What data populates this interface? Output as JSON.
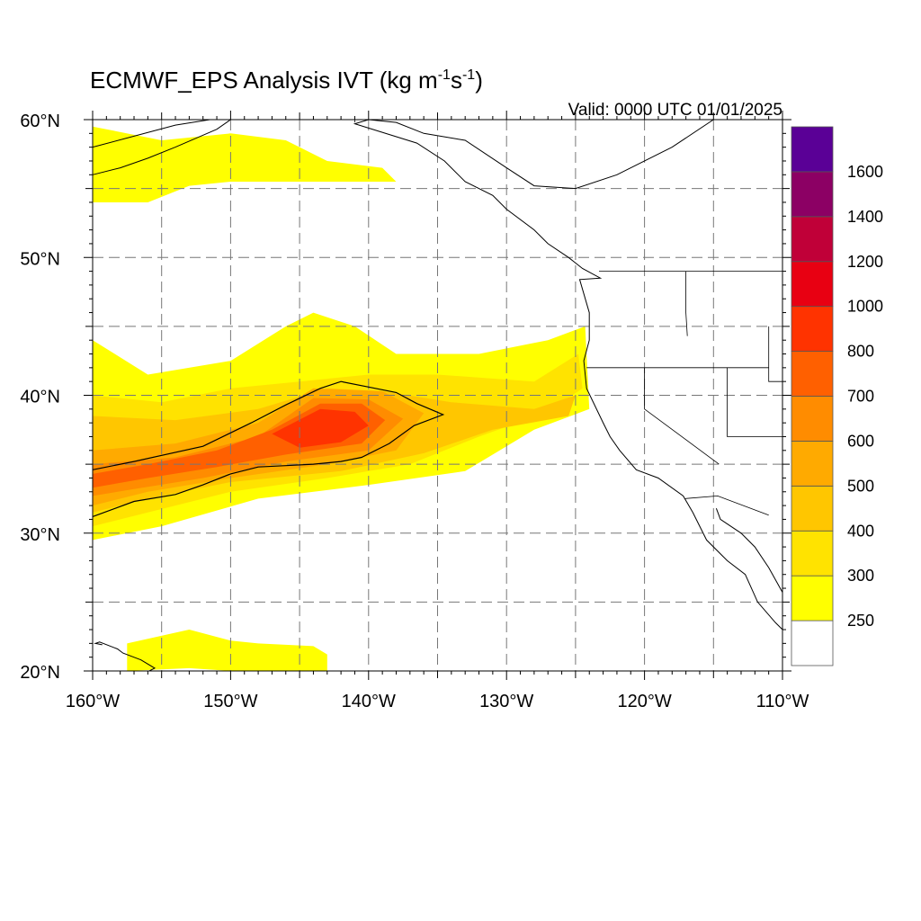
{
  "title": {
    "main": "ECMWF_EPS Analysis IVT (kg m",
    "sup1": "-1",
    "mid": "s",
    "sup2": "-1",
    "end": ")"
  },
  "valid_label": "Valid: 0000 UTC 01/01/2025",
  "map": {
    "lon_range": [
      -160,
      -110
    ],
    "lat_range": [
      20,
      60
    ],
    "lon_ticks": [
      {
        "value": -160,
        "label": "160°W"
      },
      {
        "value": -150,
        "label": "150°W"
      },
      {
        "value": -140,
        "label": "140°W"
      },
      {
        "value": -130,
        "label": "130°W"
      },
      {
        "value": -120,
        "label": "120°W"
      },
      {
        "value": -110,
        "label": "110°W"
      }
    ],
    "lat_ticks": [
      {
        "value": 60,
        "label": "60°N"
      },
      {
        "value": 50,
        "label": "50°N"
      },
      {
        "value": 40,
        "label": "40°N"
      },
      {
        "value": 30,
        "label": "30°N"
      },
      {
        "value": 20,
        "label": "20°N"
      }
    ],
    "gridlines_lon": [
      -155,
      -150,
      -145,
      -140,
      -135,
      -130,
      -125,
      -120,
      -115
    ],
    "gridlines_lat": [
      25,
      30,
      35,
      40,
      45,
      50,
      55
    ],
    "grid": true,
    "contour_level": 700,
    "ivt_regions": [
      {
        "level": 250,
        "points": [
          [
            -160,
            44
          ],
          [
            -156,
            41.5
          ],
          [
            -150,
            42.5
          ],
          [
            -146,
            45
          ],
          [
            -144,
            46
          ],
          [
            -141,
            45
          ],
          [
            -138,
            43
          ],
          [
            -132,
            43
          ],
          [
            -127,
            44
          ],
          [
            -124.3,
            45
          ],
          [
            -124,
            39
          ],
          [
            -128,
            37.5
          ],
          [
            -133,
            34.5
          ],
          [
            -140,
            33.5
          ],
          [
            -148,
            32.5
          ],
          [
            -155,
            30.5
          ],
          [
            -160,
            29.5
          ]
        ]
      },
      {
        "level": 250,
        "points": [
          [
            -160,
            59.5
          ],
          [
            -155,
            58.5
          ],
          [
            -150,
            59
          ],
          [
            -146,
            58.5
          ],
          [
            -143,
            57
          ],
          [
            -139,
            56.5
          ],
          [
            -138,
            55.5
          ],
          [
            -143,
            55.5
          ],
          [
            -150,
            55.5
          ],
          [
            -153,
            55.2
          ],
          [
            -156,
            54
          ],
          [
            -160,
            54
          ]
        ]
      },
      {
        "level": 250,
        "points": [
          [
            -157.5,
            22
          ],
          [
            -153,
            23
          ],
          [
            -150,
            22.2
          ],
          [
            -148,
            22
          ],
          [
            -144,
            21.8
          ],
          [
            -143,
            21.2
          ],
          [
            -143,
            20
          ],
          [
            -147,
            20
          ],
          [
            -150,
            20
          ],
          [
            -153,
            20.2
          ],
          [
            -157.5,
            20
          ]
        ]
      },
      {
        "level": 300,
        "points": [
          [
            -160,
            40
          ],
          [
            -155,
            39.5
          ],
          [
            -150,
            40.5
          ],
          [
            -145,
            41
          ],
          [
            -140,
            41.5
          ],
          [
            -135,
            41.5
          ],
          [
            -128,
            41
          ],
          [
            -124.8,
            43
          ],
          [
            -124.5,
            40.5
          ],
          [
            -127,
            38.8
          ],
          [
            -132,
            37
          ],
          [
            -137,
            35
          ],
          [
            -143,
            34
          ],
          [
            -150,
            33
          ],
          [
            -156,
            31.5
          ],
          [
            -160,
            30.5
          ]
        ]
      },
      {
        "level": 400,
        "points": [
          [
            -160,
            38.5
          ],
          [
            -154,
            38.2
          ],
          [
            -148,
            39
          ],
          [
            -143,
            40.5
          ],
          [
            -139,
            40.3
          ],
          [
            -134,
            39.5
          ],
          [
            -128,
            39
          ],
          [
            -125,
            40
          ],
          [
            -125.5,
            38.5
          ],
          [
            -131,
            37.5
          ],
          [
            -136,
            35.8
          ],
          [
            -142,
            34.5
          ],
          [
            -150,
            33.7
          ],
          [
            -156,
            32.5
          ],
          [
            -160,
            31.5
          ]
        ]
      },
      {
        "level": 500,
        "points": [
          [
            -160,
            36
          ],
          [
            -154,
            36.5
          ],
          [
            -148,
            38
          ],
          [
            -144,
            40.5
          ],
          [
            -139,
            40.3
          ],
          [
            -136,
            38.7
          ],
          [
            -138,
            36
          ],
          [
            -143,
            35
          ],
          [
            -150,
            34
          ],
          [
            -156,
            33
          ],
          [
            -160,
            32
          ]
        ]
      },
      {
        "level": 600,
        "points": [
          [
            -160,
            35
          ],
          [
            -154,
            35.5
          ],
          [
            -148,
            37
          ],
          [
            -144,
            39.8
          ],
          [
            -140,
            39.7
          ],
          [
            -137.5,
            38.3
          ],
          [
            -140,
            36
          ],
          [
            -146,
            35.2
          ],
          [
            -152,
            34
          ],
          [
            -157,
            33.2
          ],
          [
            -160,
            32.7
          ]
        ]
      },
      {
        "level": 700,
        "points": [
          [
            -160,
            34.3
          ],
          [
            -156,
            35
          ],
          [
            -151,
            36
          ],
          [
            -147,
            37.5
          ],
          [
            -143.5,
            39.4
          ],
          [
            -140.5,
            39.4
          ],
          [
            -138.8,
            38.2
          ],
          [
            -140.5,
            36.5
          ],
          [
            -146,
            35.7
          ],
          [
            -151,
            34.8
          ],
          [
            -156,
            34
          ],
          [
            -160,
            33.3
          ]
        ]
      },
      {
        "level": 800,
        "points": [
          [
            -147,
            37.2
          ],
          [
            -143.5,
            39
          ],
          [
            -141,
            38.8
          ],
          [
            -140,
            37.8
          ],
          [
            -142,
            36.6
          ],
          [
            -145,
            36.2
          ]
        ]
      }
    ],
    "contour_700": [
      [
        -160,
        34.6
      ],
      [
        -157,
        35.2
      ],
      [
        -152,
        36.3
      ],
      [
        -148.5,
        38
      ],
      [
        -146,
        39.3
      ],
      [
        -143.5,
        40.5
      ],
      [
        -142,
        41
      ],
      [
        -140,
        40.6
      ],
      [
        -138,
        40.2
      ],
      [
        -136.5,
        39.4
      ],
      [
        -134.6,
        38.6
      ],
      [
        -136.7,
        37.8
      ],
      [
        -138.5,
        36.5
      ],
      [
        -140.5,
        35.5
      ],
      [
        -142,
        35.2
      ],
      [
        -144,
        35
      ],
      [
        -146,
        34.9
      ],
      [
        -148,
        34.8
      ],
      [
        -150,
        34.3
      ],
      [
        -152,
        33.5
      ],
      [
        -154,
        32.8
      ],
      [
        -157,
        32.3
      ],
      [
        -160,
        31.2
      ]
    ]
  },
  "colorbar": {
    "colors": [
      "#ffffff",
      "#ffff00",
      "#ffe300",
      "#ffc600",
      "#ffaa00",
      "#ff8c00",
      "#ff6000",
      "#ff3300",
      "#e80012",
      "#c00038",
      "#8c0064",
      "#5a0096"
    ],
    "labels": [
      "250",
      "300",
      "400",
      "500",
      "600",
      "700",
      "800",
      "1000",
      "1200",
      "1400",
      "1600"
    ]
  },
  "level_colors": {
    "250": "#ffff00",
    "300": "#ffe300",
    "400": "#ffc600",
    "500": "#ffaa00",
    "600": "#ff8c00",
    "700": "#ff6000",
    "800": "#ff3300"
  },
  "coastline": {
    "north_america": [
      [
        -112,
        60
      ],
      [
        -115,
        60
      ],
      [
        -118,
        58
      ],
      [
        -122,
        56
      ],
      [
        -125,
        55
      ],
      [
        -128,
        55.2
      ],
      [
        -130,
        56.5
      ],
      [
        -133,
        58.5
      ],
      [
        -136,
        59
      ],
      [
        -138,
        59.8
      ],
      [
        -140,
        60
      ],
      [
        -141,
        59.7
      ],
      [
        -136.5,
        58.3
      ],
      [
        -134.5,
        57
      ],
      [
        -133,
        55.5
      ],
      [
        -131,
        54.5
      ],
      [
        -130,
        53.5
      ],
      [
        -128,
        52
      ],
      [
        -127,
        51
      ],
      [
        -125.5,
        50
      ],
      [
        -124.5,
        49.2
      ],
      [
        -123.2,
        48.5
      ],
      [
        -124.7,
        48.4
      ],
      [
        -124,
        46
      ],
      [
        -124,
        44
      ],
      [
        -124.4,
        42.5
      ],
      [
        -124.2,
        40.5
      ],
      [
        -123,
        38
      ],
      [
        -122.5,
        37
      ],
      [
        -121.8,
        36
      ],
      [
        -120.6,
        34.6
      ],
      [
        -119,
        34
      ],
      [
        -117.2,
        32.7
      ],
      [
        -116.5,
        31.5
      ],
      [
        -115.5,
        29.5
      ],
      [
        -114,
        28
      ],
      [
        -112.7,
        27
      ],
      [
        -111.8,
        25
      ],
      [
        -110.5,
        23.5
      ],
      [
        -110,
        23
      ]
    ],
    "gulf": [
      [
        -114.8,
        31.8
      ],
      [
        -114.5,
        31
      ],
      [
        -113,
        30
      ],
      [
        -112,
        29
      ],
      [
        -111,
        27.5
      ],
      [
        -110,
        25.7
      ]
    ],
    "alaska_sw": [
      [
        -160,
        58
      ],
      [
        -157,
        58.8
      ],
      [
        -154,
        59.6
      ],
      [
        -151.5,
        60
      ],
      [
        -150,
        60
      ],
      [
        -151,
        59.3
      ],
      [
        -154,
        58
      ],
      [
        -156,
        57.2
      ],
      [
        -158,
        56.5
      ],
      [
        -160,
        56
      ]
    ],
    "hawaii": [
      [
        -155.9,
        20
      ],
      [
        -155.5,
        20.2
      ],
      [
        -156.5,
        20.8
      ],
      [
        -157.8,
        21.3
      ],
      [
        -158.2,
        21.6
      ],
      [
        -159.5,
        22.1
      ],
      [
        -159.8,
        22
      ],
      [
        -159.3,
        21.9
      ]
    ]
  },
  "borders": [
    [
      [
        -123.3,
        49
      ],
      [
        -110,
        49
      ]
    ],
    [
      [
        -124.2,
        42
      ],
      [
        -120,
        42
      ],
      [
        -117,
        42
      ],
      [
        -111,
        42
      ]
    ],
    [
      [
        -120,
        42
      ],
      [
        -120,
        39
      ],
      [
        -114.6,
        35
      ]
    ],
    [
      [
        -117.1,
        32.5
      ],
      [
        -114.7,
        32.7
      ],
      [
        -111,
        31.3
      ]
    ],
    [
      [
        -117,
        49
      ],
      [
        -117,
        46
      ],
      [
        -116.9,
        44.3
      ]
    ],
    [
      [
        -141,
        60
      ],
      [
        -141,
        59.8
      ]
    ],
    [
      [
        -114,
        42
      ],
      [
        -114,
        37
      ],
      [
        -110,
        37
      ]
    ],
    [
      [
        -111,
        45
      ],
      [
        -111,
        41
      ],
      [
        -110,
        41
      ]
    ]
  ]
}
